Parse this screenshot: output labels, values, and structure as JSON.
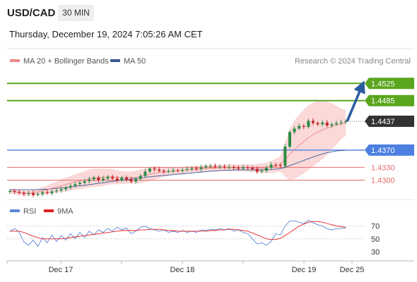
{
  "header": {
    "symbol": "USD/CAD",
    "timeframe": "30 MIN",
    "timestamp": "Thursday, December 19, 2024 7:05:26 AM CET"
  },
  "legend": {
    "ma20_bb": "MA 20 + Bollinger Bands",
    "ma50": "MA 50",
    "credit": "Research © 2024 Trading Central",
    "rsi": "RSI",
    "ma9": "9MA"
  },
  "colors": {
    "resistance": "#5aa61f",
    "support": "#4d7fe0",
    "pivot_lines": "#e86b6b",
    "candle_up": "#2e8b46",
    "candle_down": "#c2242a",
    "bollinger_fill": "#fbd9d9",
    "ma20": "#ef8a8a",
    "ma50": "#3b5998",
    "arrow": "#2c5aa0",
    "rsi": "#5b87d6",
    "rsi_ma": "#e02020",
    "price_label": "#333333"
  },
  "chart_data": [
    {
      "type": "candlestick",
      "pair": "USD/CAD",
      "ylim": [
        1.4265,
        1.4555
      ],
      "x_labels": [
        "Dec 17",
        "Dec 18",
        "Dec 19",
        "Dec 25"
      ],
      "current_price": 1.4437,
      "projection_target": 1.4525,
      "levels": [
        {
          "value": 1.4525,
          "label": "1.4525",
          "kind": "resistance"
        },
        {
          "value": 1.4485,
          "label": "1.4485",
          "kind": "resistance"
        },
        {
          "value": 1.437,
          "label": "1.4370",
          "kind": "support"
        },
        {
          "value": 1.433,
          "label": "1.4330",
          "kind": "pivot"
        },
        {
          "value": 1.43,
          "label": "1.4300",
          "kind": "pivot"
        }
      ],
      "price_path": [
        1.4275,
        1.4273,
        1.4271,
        1.4268,
        1.427,
        1.4266,
        1.4268,
        1.4272,
        1.427,
        1.4274,
        1.4276,
        1.4279,
        1.4283,
        1.4287,
        1.4291,
        1.4294,
        1.4298,
        1.4302,
        1.4306,
        1.43,
        1.4304,
        1.4308,
        1.4304,
        1.43,
        1.4306,
        1.4302,
        1.4297,
        1.4303,
        1.431,
        1.432,
        1.4327,
        1.4325,
        1.4322,
        1.432,
        1.4321,
        1.4323,
        1.4322,
        1.4324,
        1.4326,
        1.4328,
        1.4326,
        1.433,
        1.4333,
        1.4333,
        1.4331,
        1.4332,
        1.433,
        1.4331,
        1.4329,
        1.4327,
        1.433,
        1.4329,
        1.4326,
        1.432,
        1.4322,
        1.4329,
        1.4336,
        1.4335,
        1.4333,
        1.4378,
        1.4412,
        1.442,
        1.4426,
        1.4424,
        1.4438,
        1.4433,
        1.443,
        1.4434,
        1.4427,
        1.443,
        1.4433,
        1.4435,
        1.4437
      ],
      "ma20_path": [
        1.4275,
        1.4273,
        1.4271,
        1.427,
        1.427,
        1.4271,
        1.4273,
        1.4275,
        1.4278,
        1.4281,
        1.4284,
        1.4287,
        1.429,
        1.4293,
        1.4296,
        1.4298,
        1.4301,
        1.4304,
        1.4306,
        1.4306,
        1.4307,
        1.4308,
        1.4308,
        1.4307,
        1.4306,
        1.4306,
        1.4306,
        1.4307,
        1.4309,
        1.4312,
        1.4314,
        1.4316,
        1.4318,
        1.4319,
        1.432,
        1.4321,
        1.4322,
        1.4323,
        1.4324,
        1.4325,
        1.4325,
        1.4326,
        1.4327,
        1.4328,
        1.4328,
        1.4329,
        1.4329,
        1.4329,
        1.4329,
        1.4329,
        1.4329,
        1.4329,
        1.4328,
        1.4328,
        1.4328,
        1.4329,
        1.4331,
        1.4334,
        1.4338,
        1.4348,
        1.436,
        1.4371,
        1.4381,
        1.439,
        1.4399,
        1.4406,
        1.4412,
        1.4417,
        1.4421,
        1.4425,
        1.4428,
        1.4431,
        1.4433
      ],
      "bb_width": [
        0.0006,
        0.0006,
        0.0006,
        0.0006,
        0.0006,
        0.0007,
        0.0008,
        0.0009,
        0.001,
        0.0012,
        0.0013,
        0.0015,
        0.0016,
        0.0017,
        0.0018,
        0.0019,
        0.002,
        0.0021,
        0.0021,
        0.0021,
        0.002,
        0.0019,
        0.0018,
        0.0016,
        0.0015,
        0.0014,
        0.0014,
        0.0015,
        0.0016,
        0.0016,
        0.0016,
        0.0015,
        0.0013,
        0.0011,
        0.001,
        0.0009,
        0.0008,
        0.0008,
        0.0008,
        0.0008,
        0.0008,
        0.0008,
        0.0008,
        0.0008,
        0.0008,
        0.0008,
        0.0008,
        0.0008,
        0.0008,
        0.0008,
        0.0008,
        0.0009,
        0.0009,
        0.001,
        0.0011,
        0.0012,
        0.0014,
        0.0016,
        0.0018,
        0.004,
        0.006,
        0.0068,
        0.0072,
        0.0074,
        0.0075,
        0.0074,
        0.0072,
        0.0068,
        0.0062,
        0.0054,
        0.0045,
        0.0036,
        0.003
      ],
      "ma50_path": [
        1.4278,
        1.4278,
        1.4278,
        1.4278,
        1.4278,
        1.4278,
        1.4278,
        1.4279,
        1.4279,
        1.428,
        1.4281,
        1.4282,
        1.4283,
        1.4284,
        1.4286,
        1.4287,
        1.4288,
        1.429,
        1.4291,
        1.4293,
        1.4294,
        1.4296,
        1.4297,
        1.4299,
        1.43,
        1.4301,
        1.4303,
        1.4304,
        1.4305,
        1.4307,
        1.4308,
        1.4309,
        1.431,
        1.4311,
        1.4312,
        1.4313,
        1.4314,
        1.4315,
        1.4316,
        1.4317,
        1.4318,
        1.4319,
        1.432,
        1.4321,
        1.4322,
        1.4322,
        1.4323,
        1.4323,
        1.4324,
        1.4324,
        1.4324,
        1.4324,
        1.4324,
        1.4324,
        1.4324,
        1.4325,
        1.4325,
        1.4326,
        1.4327,
        1.433,
        1.4334,
        1.4338,
        1.4342,
        1.4346,
        1.435,
        1.4354,
        1.4358,
        1.4361,
        1.4364,
        1.4366,
        1.4368,
        1.4369,
        1.437
      ]
    },
    {
      "type": "line",
      "name": "RSI",
      "ylim": [
        20,
        85
      ],
      "y_ticks": [
        70,
        50,
        30
      ],
      "rsi": [
        62,
        66,
        60,
        45,
        40,
        48,
        38,
        52,
        44,
        56,
        46,
        55,
        48,
        58,
        50,
        60,
        52,
        62,
        56,
        64,
        60,
        66,
        62,
        68,
        64,
        67,
        58,
        62,
        68,
        70,
        66,
        64,
        62,
        64,
        60,
        62,
        60,
        63,
        60,
        62,
        60,
        64,
        63,
        65,
        64,
        66,
        64,
        66,
        62,
        64,
        60,
        58,
        50,
        42,
        44,
        40,
        46,
        58,
        56,
        70,
        78,
        78,
        76,
        74,
        79,
        75,
        72,
        70,
        66,
        64,
        66,
        66,
        67
      ],
      "rsi_ma": [
        62,
        62,
        62,
        60,
        57,
        54,
        52,
        50,
        50,
        50,
        50,
        50,
        51,
        52,
        53,
        54,
        55,
        56,
        57,
        58,
        59,
        60,
        61,
        62,
        63,
        63,
        63,
        63,
        64,
        64,
        65,
        65,
        65,
        64,
        63,
        63,
        62,
        62,
        62,
        62,
        62,
        62,
        62,
        63,
        63,
        64,
        64,
        65,
        65,
        64,
        63,
        62,
        59,
        56,
        53,
        50,
        49,
        49,
        51,
        55,
        60,
        65,
        70,
        73,
        76,
        77,
        77,
        76,
        74,
        72,
        70,
        69,
        68
      ]
    }
  ]
}
